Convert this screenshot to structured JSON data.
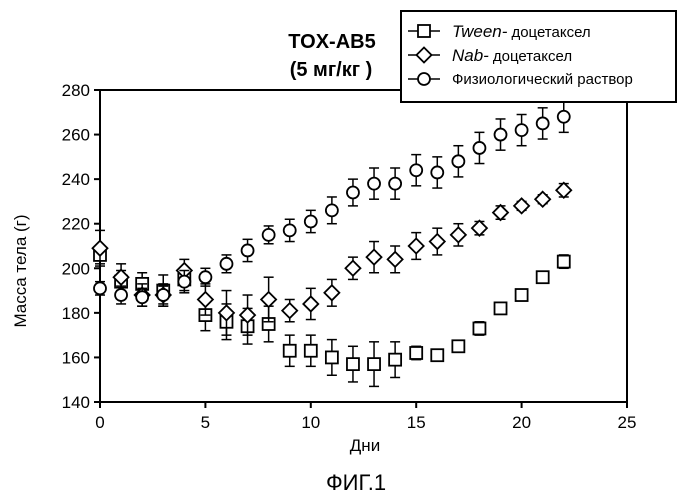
{
  "chart_data": {
    "type": "scatter",
    "title": "TOX-AB5",
    "subtitle": "(5 мг/кг )",
    "xlabel": "Дни",
    "ylabel": "Масса тела (г)",
    "xlim": [
      0,
      25
    ],
    "ylim": [
      140,
      280
    ],
    "xticks": [
      0,
      5,
      10,
      15,
      20,
      25
    ],
    "yticks": [
      140,
      160,
      180,
      200,
      220,
      240,
      260,
      280
    ],
    "grid": false,
    "legend_position": "top-right",
    "series": [
      {
        "legend_name": "Tween-",
        "legend_suffix": "доцетаксел",
        "marker": "square",
        "points": [
          {
            "x": 0,
            "y": 206,
            "err": 4
          },
          {
            "x": 1,
            "y": 194,
            "err": 5
          },
          {
            "x": 2,
            "y": 193,
            "err": 5
          },
          {
            "x": 3,
            "y": 190,
            "err": 7
          },
          {
            "x": 4,
            "y": 195,
            "err": 5
          },
          {
            "x": 5,
            "y": 179,
            "err": 7
          },
          {
            "x": 6,
            "y": 176,
            "err": 8
          },
          {
            "x": 7,
            "y": 174,
            "err": 8
          },
          {
            "x": 8,
            "y": 175,
            "err": 8
          },
          {
            "x": 9,
            "y": 163,
            "err": 7
          },
          {
            "x": 10,
            "y": 163,
            "err": 7
          },
          {
            "x": 11,
            "y": 160,
            "err": 8
          },
          {
            "x": 12,
            "y": 157,
            "err": 8
          },
          {
            "x": 13,
            "y": 157,
            "err": 10
          },
          {
            "x": 14,
            "y": 159,
            "err": 8
          },
          {
            "x": 15,
            "y": 162,
            "err": 3
          },
          {
            "x": 16,
            "y": 161,
            "err": 2
          },
          {
            "x": 17,
            "y": 165,
            "err": 2
          },
          {
            "x": 18,
            "y": 173,
            "err": 3
          },
          {
            "x": 19,
            "y": 182,
            "err": 2
          },
          {
            "x": 20,
            "y": 188,
            "err": 2
          },
          {
            "x": 21,
            "y": 196,
            "err": 2
          },
          {
            "x": 22,
            "y": 203,
            "err": 3
          }
        ]
      },
      {
        "legend_name": "Nab-",
        "legend_suffix": "доцетаксел",
        "marker": "diamond",
        "points": [
          {
            "x": 0,
            "y": 209,
            "err": 8
          },
          {
            "x": 1,
            "y": 196,
            "err": 6
          },
          {
            "x": 2,
            "y": 188,
            "err": 5
          },
          {
            "x": 3,
            "y": 188,
            "err": 5
          },
          {
            "x": 4,
            "y": 199,
            "err": 5
          },
          {
            "x": 5,
            "y": 186,
            "err": 7
          },
          {
            "x": 6,
            "y": 180,
            "err": 10
          },
          {
            "x": 7,
            "y": 179,
            "err": 9
          },
          {
            "x": 8,
            "y": 186,
            "err": 10
          },
          {
            "x": 9,
            "y": 181,
            "err": 5
          },
          {
            "x": 10,
            "y": 184,
            "err": 7
          },
          {
            "x": 11,
            "y": 189,
            "err": 6
          },
          {
            "x": 12,
            "y": 200,
            "err": 5
          },
          {
            "x": 13,
            "y": 205,
            "err": 7
          },
          {
            "x": 14,
            "y": 204,
            "err": 6
          },
          {
            "x": 15,
            "y": 210,
            "err": 6
          },
          {
            "x": 16,
            "y": 212,
            "err": 6
          },
          {
            "x": 17,
            "y": 215,
            "err": 5
          },
          {
            "x": 18,
            "y": 218,
            "err": 3
          },
          {
            "x": 19,
            "y": 225,
            "err": 3
          },
          {
            "x": 20,
            "y": 228,
            "err": 2
          },
          {
            "x": 21,
            "y": 231,
            "err": 2
          },
          {
            "x": 22,
            "y": 235,
            "err": 3
          }
        ]
      },
      {
        "legend_name": "Физиологический раствор",
        "legend_suffix": "",
        "marker": "circle",
        "points": [
          {
            "x": 0,
            "y": 191,
            "err": 3
          },
          {
            "x": 1,
            "y": 188,
            "err": 4
          },
          {
            "x": 2,
            "y": 187,
            "err": 4
          },
          {
            "x": 3,
            "y": 188,
            "err": 4
          },
          {
            "x": 4,
            "y": 194,
            "err": 5
          },
          {
            "x": 5,
            "y": 196,
            "err": 4
          },
          {
            "x": 6,
            "y": 202,
            "err": 4
          },
          {
            "x": 7,
            "y": 208,
            "err": 5
          },
          {
            "x": 8,
            "y": 215,
            "err": 4
          },
          {
            "x": 9,
            "y": 217,
            "err": 5
          },
          {
            "x": 10,
            "y": 221,
            "err": 5
          },
          {
            "x": 11,
            "y": 226,
            "err": 6
          },
          {
            "x": 12,
            "y": 234,
            "err": 6
          },
          {
            "x": 13,
            "y": 238,
            "err": 7
          },
          {
            "x": 14,
            "y": 238,
            "err": 7
          },
          {
            "x": 15,
            "y": 244,
            "err": 7
          },
          {
            "x": 16,
            "y": 243,
            "err": 7
          },
          {
            "x": 17,
            "y": 248,
            "err": 7
          },
          {
            "x": 18,
            "y": 254,
            "err": 7
          },
          {
            "x": 19,
            "y": 260,
            "err": 7
          },
          {
            "x": 20,
            "y": 262,
            "err": 7
          },
          {
            "x": 21,
            "y": 265,
            "err": 7
          },
          {
            "x": 22,
            "y": 268,
            "err": 7
          }
        ]
      }
    ]
  },
  "figure_caption": "ФИГ.1",
  "colors": {
    "ink": "#000000",
    "background": "#ffffff"
  }
}
